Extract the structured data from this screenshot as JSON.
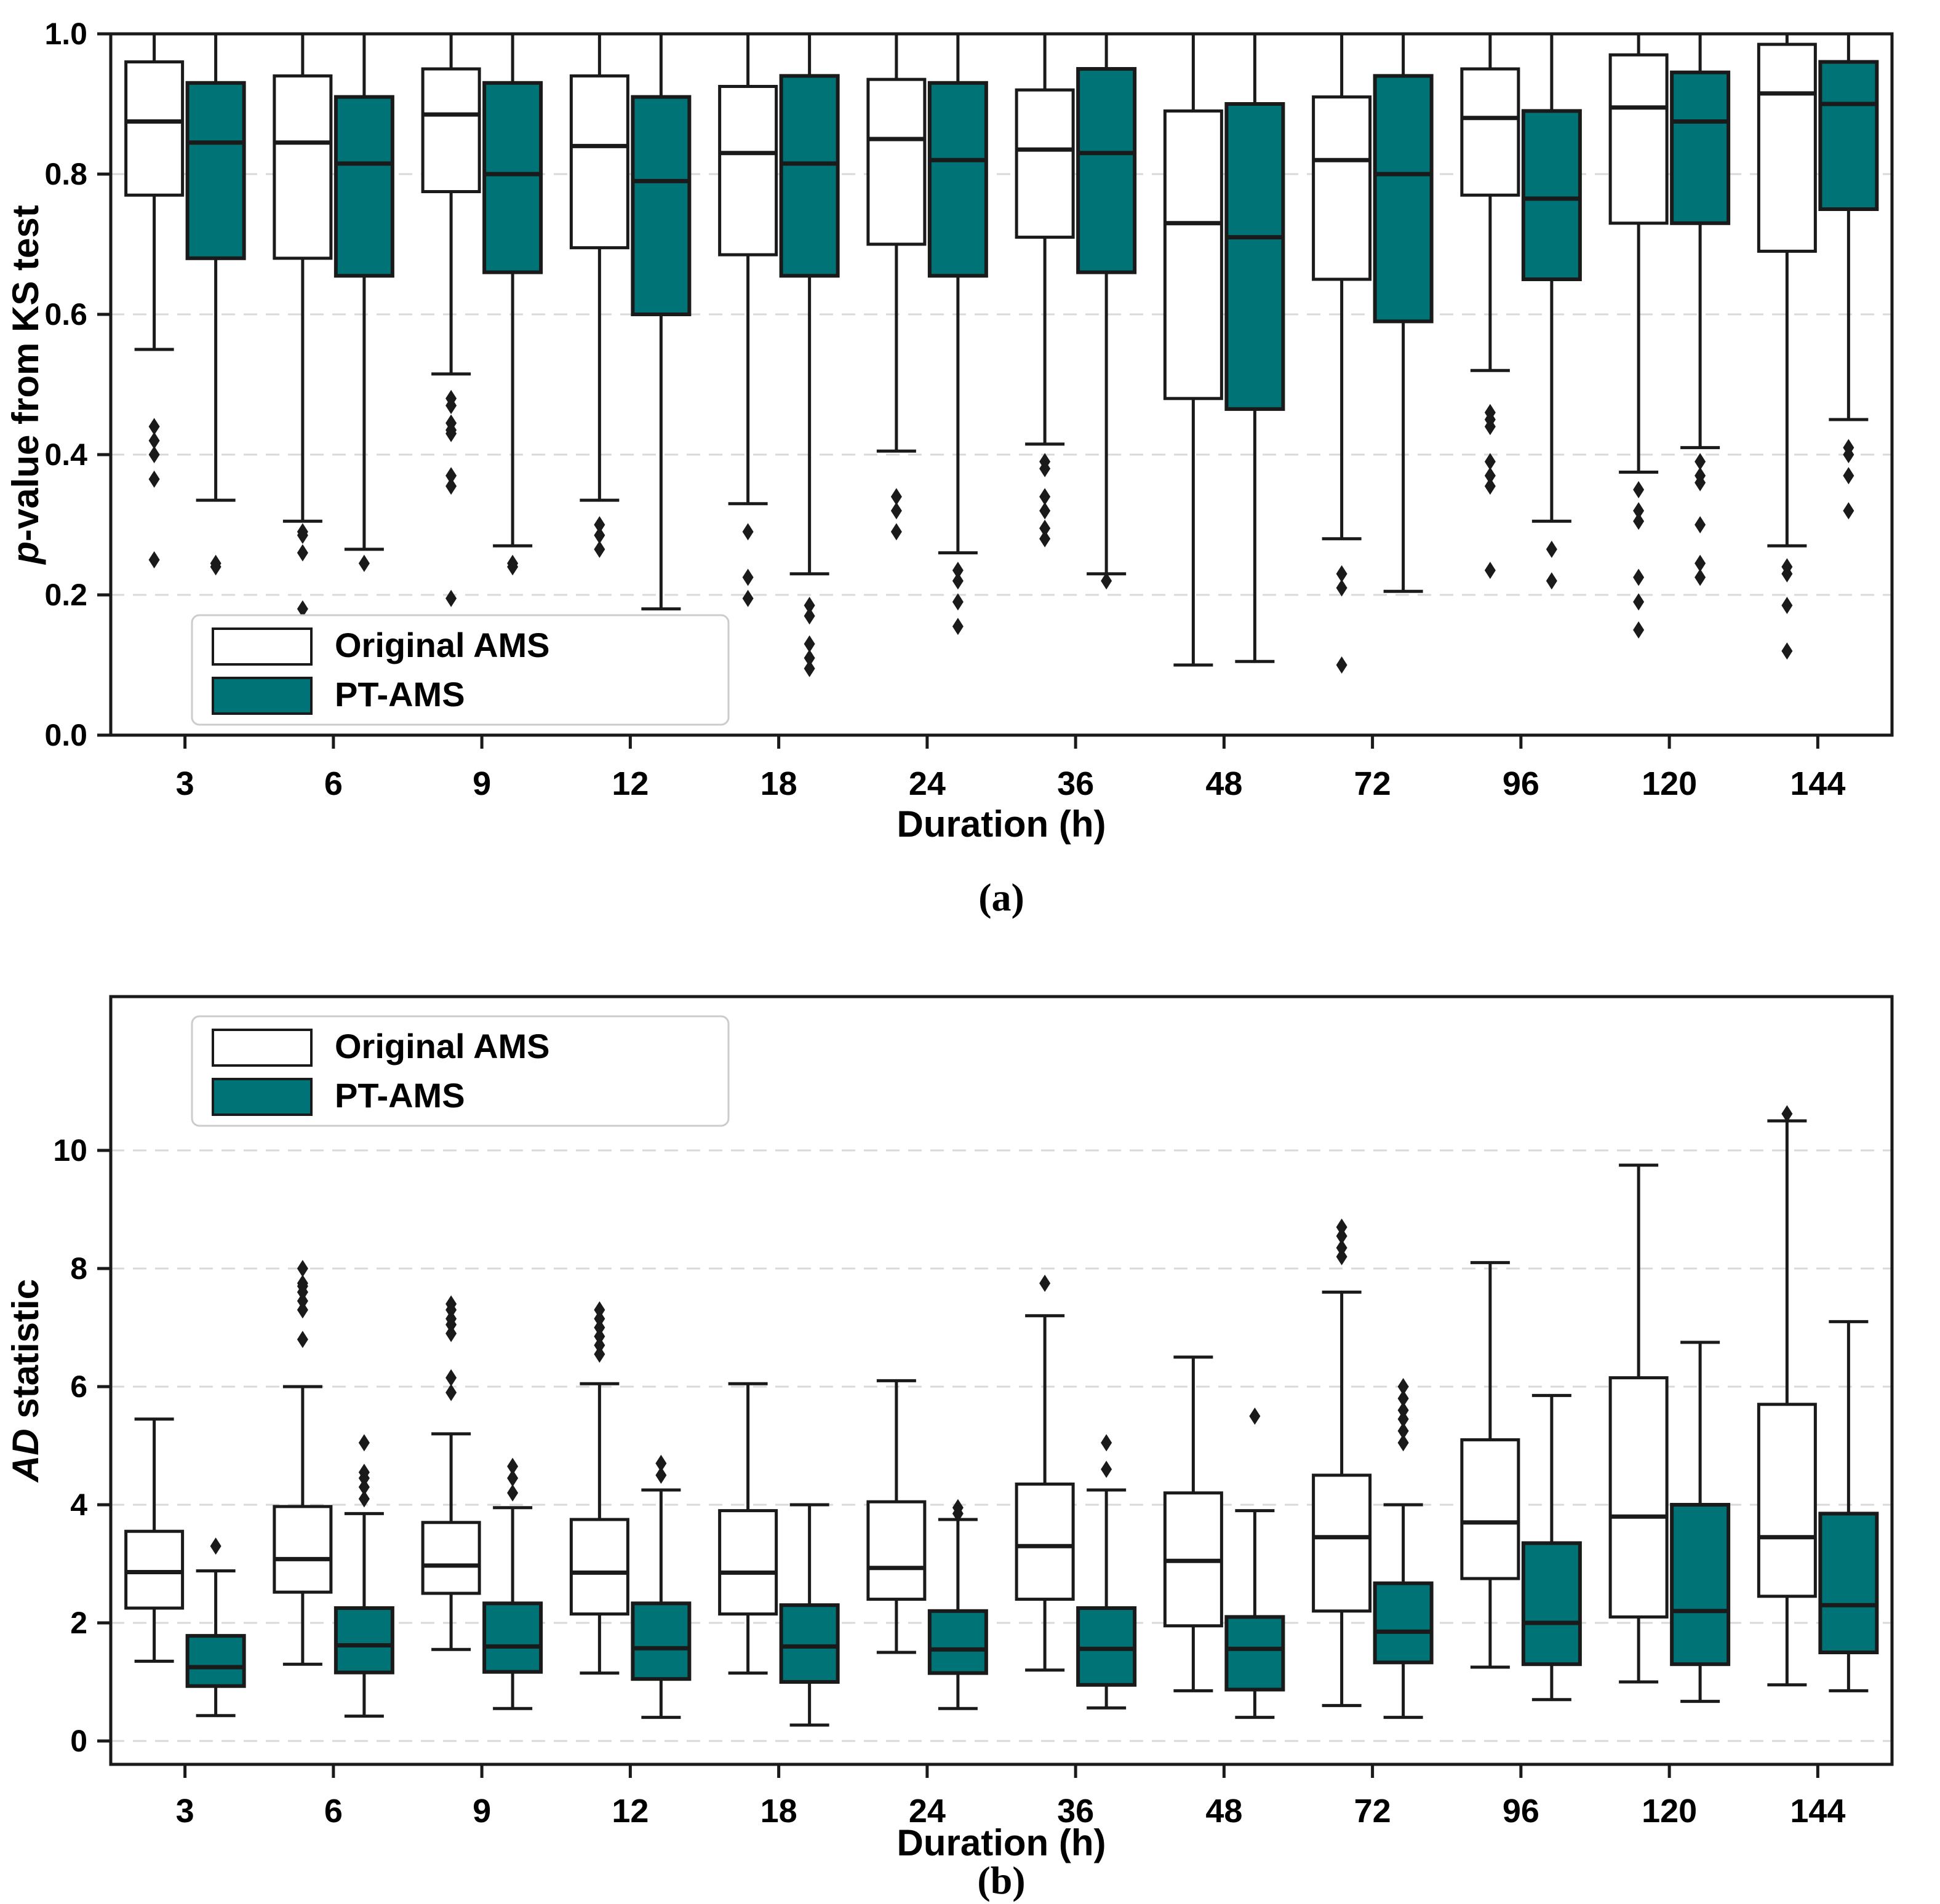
{
  "figure": {
    "background": "#ffffff",
    "edge_color": "#1a1a1a",
    "grid_color": "#d9d9d9",
    "teal_color": "#007377",
    "white_color": "#ffffff"
  },
  "chart_data": [
    {
      "type": "boxplot-group",
      "panel": "a",
      "caption": "(a)",
      "xlabel": "Duration (h)",
      "ylabel_parts": [
        {
          "text": "p",
          "italic": true
        },
        {
          "text": "-value from KS test",
          "italic": false
        }
      ],
      "categories": [
        "3",
        "6",
        "9",
        "12",
        "18",
        "24",
        "36",
        "48",
        "72",
        "96",
        "120",
        "144"
      ],
      "ylim": [
        0.0,
        1.0
      ],
      "yticks": [
        0.0,
        0.2,
        0.4,
        0.6,
        0.8,
        1.0
      ],
      "ytick_labels": [
        "0.0",
        "0.2",
        "0.4",
        "0.6",
        "0.8",
        "1.0"
      ],
      "gridlines": [
        0.2,
        0.4,
        0.6,
        0.8
      ],
      "grid_style": "dashed",
      "legend": {
        "position": "bottom-left",
        "entries": [
          {
            "label": "Original AMS",
            "fill": "#ffffff"
          },
          {
            "label": "PT-AMS",
            "fill": "#007377"
          }
        ]
      },
      "series": [
        {
          "name": "Original AMS",
          "fill": "#ffffff",
          "boxes": [
            {
              "lo": 0.55,
              "q1": 0.77,
              "med": 0.875,
              "q3": 0.96,
              "hi": 1.0,
              "outliers": [
                0.44,
                0.42,
                0.4,
                0.365,
                0.25
              ]
            },
            {
              "lo": 0.305,
              "q1": 0.68,
              "med": 0.845,
              "q3": 0.94,
              "hi": 1.0,
              "outliers": [
                0.29,
                0.285,
                0.26,
                0.18
              ]
            },
            {
              "lo": 0.515,
              "q1": 0.775,
              "med": 0.885,
              "q3": 0.95,
              "hi": 1.0,
              "outliers": [
                0.48,
                0.47,
                0.445,
                0.435,
                0.43,
                0.37,
                0.355,
                0.195,
                0.16
              ]
            },
            {
              "lo": 0.335,
              "q1": 0.695,
              "med": 0.84,
              "q3": 0.94,
              "hi": 1.0,
              "outliers": [
                0.3,
                0.285,
                0.265
              ]
            },
            {
              "lo": 0.33,
              "q1": 0.685,
              "med": 0.83,
              "q3": 0.925,
              "hi": 1.0,
              "outliers": [
                0.29,
                0.225,
                0.195
              ]
            },
            {
              "lo": 0.405,
              "q1": 0.7,
              "med": 0.85,
              "q3": 0.935,
              "hi": 1.0,
              "outliers": [
                0.34,
                0.32,
                0.29
              ]
            },
            {
              "lo": 0.415,
              "q1": 0.71,
              "med": 0.835,
              "q3": 0.92,
              "hi": 1.0,
              "outliers": [
                0.39,
                0.38,
                0.34,
                0.32,
                0.295,
                0.28
              ]
            },
            {
              "lo": 0.1,
              "q1": 0.48,
              "med": 0.73,
              "q3": 0.89,
              "hi": 1.0,
              "outliers": []
            },
            {
              "lo": 0.28,
              "q1": 0.65,
              "med": 0.82,
              "q3": 0.91,
              "hi": 1.0,
              "outliers": [
                0.23,
                0.21,
                0.1
              ]
            },
            {
              "lo": 0.52,
              "q1": 0.77,
              "med": 0.88,
              "q3": 0.95,
              "hi": 1.0,
              "outliers": [
                0.46,
                0.45,
                0.44,
                0.39,
                0.37,
                0.355,
                0.235
              ]
            },
            {
              "lo": 0.375,
              "q1": 0.73,
              "med": 0.895,
              "q3": 0.97,
              "hi": 1.0,
              "outliers": [
                0.35,
                0.32,
                0.305,
                0.225,
                0.19,
                0.15
              ]
            },
            {
              "lo": 0.27,
              "q1": 0.69,
              "med": 0.915,
              "q3": 0.985,
              "hi": 1.0,
              "outliers": [
                0.24,
                0.23,
                0.185,
                0.12
              ]
            }
          ]
        },
        {
          "name": "PT-AMS",
          "fill": "#007377",
          "boxes": [
            {
              "lo": 0.335,
              "q1": 0.68,
              "med": 0.845,
              "q3": 0.93,
              "hi": 1.0,
              "outliers": [
                0.245,
                0.24
              ]
            },
            {
              "lo": 0.265,
              "q1": 0.655,
              "med": 0.815,
              "q3": 0.91,
              "hi": 1.0,
              "outliers": [
                0.245
              ]
            },
            {
              "lo": 0.27,
              "q1": 0.66,
              "med": 0.8,
              "q3": 0.93,
              "hi": 1.0,
              "outliers": [
                0.245,
                0.24
              ]
            },
            {
              "lo": 0.18,
              "q1": 0.6,
              "med": 0.79,
              "q3": 0.91,
              "hi": 1.0,
              "outliers": [
                0.12
              ]
            },
            {
              "lo": 0.23,
              "q1": 0.655,
              "med": 0.815,
              "q3": 0.94,
              "hi": 1.0,
              "outliers": [
                0.185,
                0.17,
                0.13,
                0.11,
                0.095
              ]
            },
            {
              "lo": 0.26,
              "q1": 0.655,
              "med": 0.82,
              "q3": 0.93,
              "hi": 1.0,
              "outliers": [
                0.235,
                0.22,
                0.19,
                0.155
              ]
            },
            {
              "lo": 0.23,
              "q1": 0.66,
              "med": 0.83,
              "q3": 0.95,
              "hi": 1.0,
              "outliers": [
                0.22
              ]
            },
            {
              "lo": 0.105,
              "q1": 0.465,
              "med": 0.71,
              "q3": 0.9,
              "hi": 1.0,
              "outliers": []
            },
            {
              "lo": 0.205,
              "q1": 0.59,
              "med": 0.8,
              "q3": 0.94,
              "hi": 1.0,
              "outliers": []
            },
            {
              "lo": 0.305,
              "q1": 0.65,
              "med": 0.765,
              "q3": 0.89,
              "hi": 1.0,
              "outliers": [
                0.265,
                0.22
              ]
            },
            {
              "lo": 0.41,
              "q1": 0.73,
              "med": 0.875,
              "q3": 0.945,
              "hi": 1.0,
              "outliers": [
                0.39,
                0.37,
                0.36,
                0.3,
                0.245,
                0.225
              ]
            },
            {
              "lo": 0.45,
              "q1": 0.75,
              "med": 0.9,
              "q3": 0.96,
              "hi": 1.0,
              "outliers": [
                0.41,
                0.4,
                0.37,
                0.32
              ]
            }
          ]
        }
      ]
    },
    {
      "type": "boxplot-group",
      "panel": "b",
      "caption": "(b)",
      "xlabel": "Duration (h)",
      "ylabel_parts": [
        {
          "text": "AD",
          "italic": true
        },
        {
          "text": " statistic",
          "italic": false
        }
      ],
      "categories": [
        "3",
        "6",
        "9",
        "12",
        "18",
        "24",
        "36",
        "48",
        "72",
        "96",
        "120",
        "144"
      ],
      "ylim": [
        -0.45,
        12.6
      ],
      "yticks": [
        0,
        2,
        4,
        6,
        8,
        10
      ],
      "ytick_labels": [
        "0",
        "2",
        "4",
        "6",
        "8",
        "10"
      ],
      "gridlines": [
        0,
        2,
        4,
        6,
        8,
        10
      ],
      "grid_style": "dashed",
      "legend": {
        "position": "top-left",
        "entries": [
          {
            "label": "Original AMS",
            "fill": "#ffffff"
          },
          {
            "label": "PT-AMS",
            "fill": "#007377"
          }
        ]
      },
      "series": [
        {
          "name": "Original AMS",
          "fill": "#ffffff",
          "boxes": [
            {
              "lo": 1.35,
              "q1": 2.25,
              "med": 2.86,
              "q3": 3.55,
              "hi": 5.45,
              "outliers": []
            },
            {
              "lo": 1.3,
              "q1": 2.52,
              "med": 3.08,
              "q3": 3.97,
              "hi": 6.0,
              "outliers": [
                8.0,
                7.75,
                7.7,
                7.6,
                7.45,
                7.3,
                6.8
              ]
            },
            {
              "lo": 1.55,
              "q1": 2.5,
              "med": 2.97,
              "q3": 3.7,
              "hi": 5.2,
              "outliers": [
                7.4,
                7.3,
                7.15,
                7.05,
                6.9,
                6.15,
                5.9
              ]
            },
            {
              "lo": 1.15,
              "q1": 2.15,
              "med": 2.85,
              "q3": 3.75,
              "hi": 6.05,
              "outliers": [
                7.3,
                7.15,
                7.0,
                6.85,
                6.7,
                6.55
              ]
            },
            {
              "lo": 1.15,
              "q1": 2.15,
              "med": 2.85,
              "q3": 3.9,
              "hi": 6.05,
              "outliers": []
            },
            {
              "lo": 1.5,
              "q1": 2.4,
              "med": 2.93,
              "q3": 4.05,
              "hi": 6.1,
              "outliers": []
            },
            {
              "lo": 1.2,
              "q1": 2.4,
              "med": 3.3,
              "q3": 4.35,
              "hi": 7.2,
              "outliers": [
                7.75
              ]
            },
            {
              "lo": 0.85,
              "q1": 1.95,
              "med": 3.05,
              "q3": 4.2,
              "hi": 6.5,
              "outliers": []
            },
            {
              "lo": 0.6,
              "q1": 2.2,
              "med": 3.45,
              "q3": 4.5,
              "hi": 7.6,
              "outliers": [
                8.7,
                8.55,
                8.35,
                8.2
              ]
            },
            {
              "lo": 1.25,
              "q1": 2.75,
              "med": 3.7,
              "q3": 5.1,
              "hi": 8.1,
              "outliers": []
            },
            {
              "lo": 1.0,
              "q1": 2.1,
              "med": 3.8,
              "q3": 6.15,
              "hi": 9.75,
              "outliers": []
            },
            {
              "lo": 0.95,
              "q1": 2.45,
              "med": 3.45,
              "q3": 5.7,
              "hi": 10.5,
              "outliers": [
                10.62
              ]
            }
          ]
        },
        {
          "name": "PT-AMS",
          "fill": "#007377",
          "boxes": [
            {
              "lo": 0.43,
              "q1": 0.93,
              "med": 1.25,
              "q3": 1.78,
              "hi": 2.88,
              "outliers": [
                3.3
              ]
            },
            {
              "lo": 0.42,
              "q1": 1.16,
              "med": 1.62,
              "q3": 2.25,
              "hi": 3.85,
              "outliers": [
                5.05,
                4.55,
                4.45,
                4.3,
                4.1
              ]
            },
            {
              "lo": 0.55,
              "q1": 1.17,
              "med": 1.6,
              "q3": 2.33,
              "hi": 3.95,
              "outliers": [
                4.65,
                4.45,
                4.2
              ]
            },
            {
              "lo": 0.4,
              "q1": 1.05,
              "med": 1.57,
              "q3": 2.33,
              "hi": 4.25,
              "outliers": [
                4.7,
                4.5
              ]
            },
            {
              "lo": 0.27,
              "q1": 1.0,
              "med": 1.6,
              "q3": 2.3,
              "hi": 4.0,
              "outliers": []
            },
            {
              "lo": 0.55,
              "q1": 1.15,
              "med": 1.55,
              "q3": 2.2,
              "hi": 3.75,
              "outliers": [
                3.95,
                3.85
              ]
            },
            {
              "lo": 0.56,
              "q1": 0.95,
              "med": 1.56,
              "q3": 2.25,
              "hi": 4.25,
              "outliers": [
                5.05,
                4.6
              ]
            },
            {
              "lo": 0.4,
              "q1": 0.87,
              "med": 1.56,
              "q3": 2.1,
              "hi": 3.9,
              "outliers": [
                5.5
              ]
            },
            {
              "lo": 0.4,
              "q1": 1.33,
              "med": 1.85,
              "q3": 2.67,
              "hi": 4.0,
              "outliers": [
                6.0,
                5.8,
                5.6,
                5.45,
                5.25,
                5.05
              ]
            },
            {
              "lo": 0.7,
              "q1": 1.3,
              "med": 2.0,
              "q3": 3.35,
              "hi": 5.85,
              "outliers": []
            },
            {
              "lo": 0.67,
              "q1": 1.3,
              "med": 2.2,
              "q3": 4.0,
              "hi": 6.75,
              "outliers": []
            },
            {
              "lo": 0.85,
              "q1": 1.5,
              "med": 2.3,
              "q3": 3.85,
              "hi": 7.1,
              "outliers": []
            }
          ]
        }
      ]
    }
  ]
}
